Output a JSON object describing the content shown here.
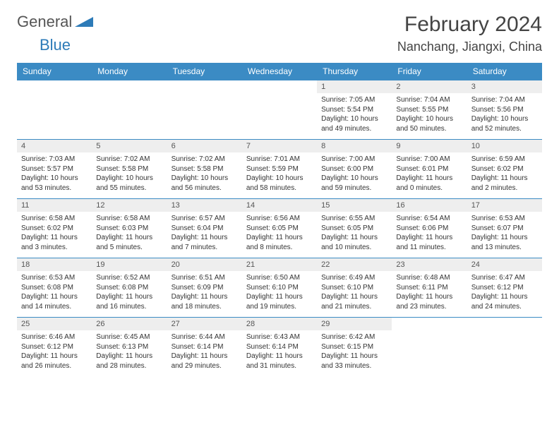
{
  "brand": {
    "part1": "General",
    "part2": "Blue"
  },
  "title": "February 2024",
  "location": "Nanchang, Jiangxi, China",
  "colors": {
    "header_bg": "#3b8bc4",
    "header_fg": "#ffffff",
    "daynum_bg": "#eeeeee",
    "border": "#3b8bc4",
    "brand_blue": "#2d7bb8",
    "text": "#333333"
  },
  "dayNames": [
    "Sunday",
    "Monday",
    "Tuesday",
    "Wednesday",
    "Thursday",
    "Friday",
    "Saturday"
  ],
  "weeks": [
    [
      null,
      null,
      null,
      null,
      {
        "n": "1",
        "sr": "7:05 AM",
        "ss": "5:54 PM",
        "dl": "10 hours and 49 minutes."
      },
      {
        "n": "2",
        "sr": "7:04 AM",
        "ss": "5:55 PM",
        "dl": "10 hours and 50 minutes."
      },
      {
        "n": "3",
        "sr": "7:04 AM",
        "ss": "5:56 PM",
        "dl": "10 hours and 52 minutes."
      }
    ],
    [
      {
        "n": "4",
        "sr": "7:03 AM",
        "ss": "5:57 PM",
        "dl": "10 hours and 53 minutes."
      },
      {
        "n": "5",
        "sr": "7:02 AM",
        "ss": "5:58 PM",
        "dl": "10 hours and 55 minutes."
      },
      {
        "n": "6",
        "sr": "7:02 AM",
        "ss": "5:58 PM",
        "dl": "10 hours and 56 minutes."
      },
      {
        "n": "7",
        "sr": "7:01 AM",
        "ss": "5:59 PM",
        "dl": "10 hours and 58 minutes."
      },
      {
        "n": "8",
        "sr": "7:00 AM",
        "ss": "6:00 PM",
        "dl": "10 hours and 59 minutes."
      },
      {
        "n": "9",
        "sr": "7:00 AM",
        "ss": "6:01 PM",
        "dl": "11 hours and 0 minutes."
      },
      {
        "n": "10",
        "sr": "6:59 AM",
        "ss": "6:02 PM",
        "dl": "11 hours and 2 minutes."
      }
    ],
    [
      {
        "n": "11",
        "sr": "6:58 AM",
        "ss": "6:02 PM",
        "dl": "11 hours and 3 minutes."
      },
      {
        "n": "12",
        "sr": "6:58 AM",
        "ss": "6:03 PM",
        "dl": "11 hours and 5 minutes."
      },
      {
        "n": "13",
        "sr": "6:57 AM",
        "ss": "6:04 PM",
        "dl": "11 hours and 7 minutes."
      },
      {
        "n": "14",
        "sr": "6:56 AM",
        "ss": "6:05 PM",
        "dl": "11 hours and 8 minutes."
      },
      {
        "n": "15",
        "sr": "6:55 AM",
        "ss": "6:05 PM",
        "dl": "11 hours and 10 minutes."
      },
      {
        "n": "16",
        "sr": "6:54 AM",
        "ss": "6:06 PM",
        "dl": "11 hours and 11 minutes."
      },
      {
        "n": "17",
        "sr": "6:53 AM",
        "ss": "6:07 PM",
        "dl": "11 hours and 13 minutes."
      }
    ],
    [
      {
        "n": "18",
        "sr": "6:53 AM",
        "ss": "6:08 PM",
        "dl": "11 hours and 14 minutes."
      },
      {
        "n": "19",
        "sr": "6:52 AM",
        "ss": "6:08 PM",
        "dl": "11 hours and 16 minutes."
      },
      {
        "n": "20",
        "sr": "6:51 AM",
        "ss": "6:09 PM",
        "dl": "11 hours and 18 minutes."
      },
      {
        "n": "21",
        "sr": "6:50 AM",
        "ss": "6:10 PM",
        "dl": "11 hours and 19 minutes."
      },
      {
        "n": "22",
        "sr": "6:49 AM",
        "ss": "6:10 PM",
        "dl": "11 hours and 21 minutes."
      },
      {
        "n": "23",
        "sr": "6:48 AM",
        "ss": "6:11 PM",
        "dl": "11 hours and 23 minutes."
      },
      {
        "n": "24",
        "sr": "6:47 AM",
        "ss": "6:12 PM",
        "dl": "11 hours and 24 minutes."
      }
    ],
    [
      {
        "n": "25",
        "sr": "6:46 AM",
        "ss": "6:12 PM",
        "dl": "11 hours and 26 minutes."
      },
      {
        "n": "26",
        "sr": "6:45 AM",
        "ss": "6:13 PM",
        "dl": "11 hours and 28 minutes."
      },
      {
        "n": "27",
        "sr": "6:44 AM",
        "ss": "6:14 PM",
        "dl": "11 hours and 29 minutes."
      },
      {
        "n": "28",
        "sr": "6:43 AM",
        "ss": "6:14 PM",
        "dl": "11 hours and 31 minutes."
      },
      {
        "n": "29",
        "sr": "6:42 AM",
        "ss": "6:15 PM",
        "dl": "11 hours and 33 minutes."
      },
      null,
      null
    ]
  ],
  "labels": {
    "sunrise": "Sunrise:",
    "sunset": "Sunset:",
    "daylight": "Daylight:"
  }
}
